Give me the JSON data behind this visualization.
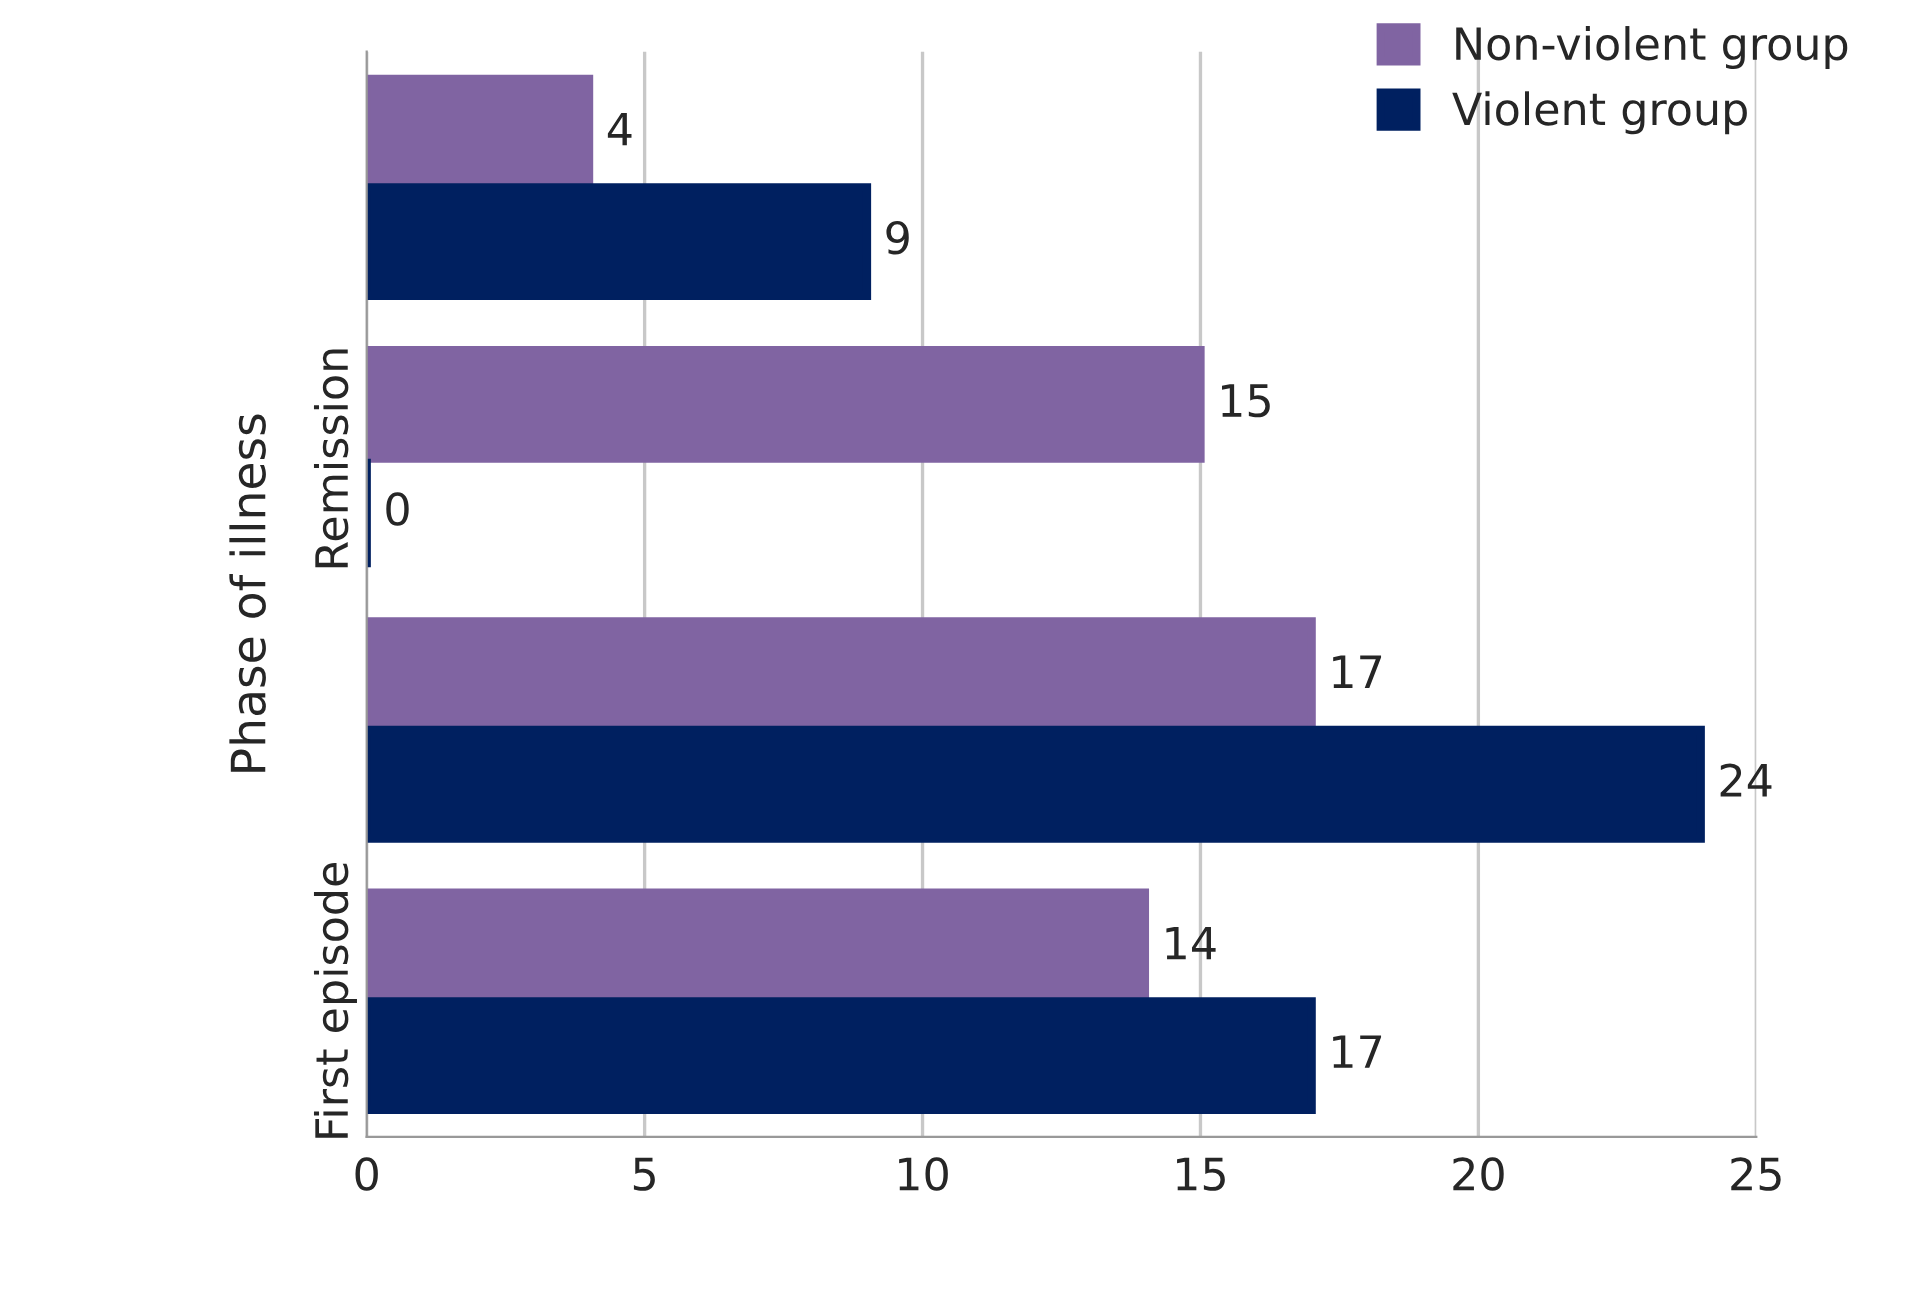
{
  "chart_data": {
    "type": "bar",
    "orientation": "horizontal",
    "ylabel": "Phase of illness",
    "categories": [
      null,
      "Remission",
      null,
      "First episode"
    ],
    "series": [
      {
        "name": "Non-violent group",
        "color": "#8064a2",
        "values": [
          4,
          15,
          17,
          14
        ]
      },
      {
        "name": "Violent group",
        "color": "#002060",
        "values": [
          9,
          0,
          24,
          17
        ]
      }
    ],
    "xlim": [
      0,
      25
    ],
    "xticks": [
      0,
      5,
      10,
      15,
      20,
      25
    ],
    "grid": "x",
    "legend": "top right",
    "data_labels": true
  }
}
